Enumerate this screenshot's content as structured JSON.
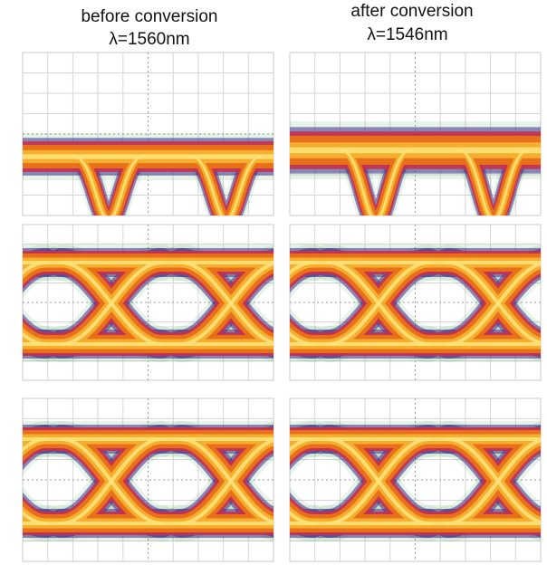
{
  "columns": [
    {
      "heading": "before conversion",
      "wavelength": "λ=1560nm"
    },
    {
      "heading": "after conversion",
      "wavelength": "λ=1546nm"
    }
  ]
}
